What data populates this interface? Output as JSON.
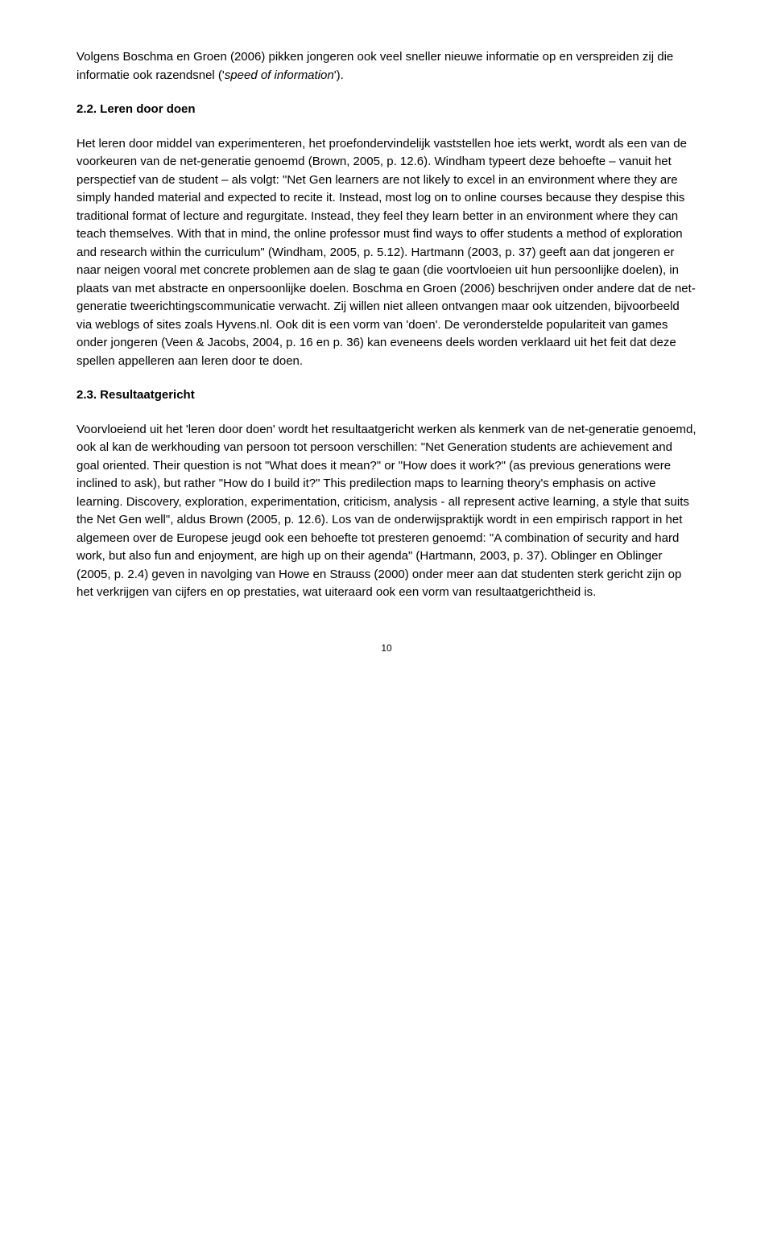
{
  "para1_part1": "Volgens Boschma en Groen (2006) pikken jongeren ook veel sneller nieuwe informatie op en verspreiden zij die informatie ook razendsnel ('",
  "para1_italic": "speed of information",
  "para1_part2": "').",
  "heading1": "2.2. Leren door doen",
  "para2": "Het leren door middel van experimenteren, het proefondervindelijk vaststellen hoe iets werkt, wordt als een van de voorkeuren van de net-generatie genoemd (Brown, 2005, p. 12.6). Windham typeert deze behoefte – vanuit het perspectief van de student – als volgt: \"Net Gen learners are not likely to excel in an environment where they are simply handed material and expected to recite it. Instead, most log on to online courses because they despise this traditional format of lecture and regurgitate. Instead, they feel they learn better in an environment where they can teach themselves. With that in mind, the online professor must find ways to offer students a method of exploration and research within the curriculum\" (Windham, 2005, p. 5.12). Hartmann (2003, p. 37) geeft aan dat jongeren er naar neigen vooral met concrete problemen aan de slag te gaan (die voortvloeien uit hun persoonlijke doelen), in plaats van met abstracte en onpersoonlijke doelen. Boschma en Groen (2006) beschrijven onder andere dat de net-generatie tweerichtingscommunicatie verwacht. Zij willen niet alleen ontvangen maar ook uitzenden, bijvoorbeeld via weblogs of sites zoals Hyvens.nl. Ook dit is een vorm van 'doen'. De veronderstelde populariteit van games onder jongeren (Veen & Jacobs, 2004, p. 16 en p. 36) kan eveneens deels worden verklaard uit het feit dat deze spellen appelleren aan leren door te doen.",
  "heading2": "2.3. Resultaatgericht",
  "para3": "Voorvloeiend uit het 'leren door doen' wordt het resultaatgericht werken als kenmerk van de net-generatie genoemd, ook al kan de werkhouding van persoon tot persoon verschillen: \"Net Generation students are achievement and goal oriented. Their question is not \"What does it mean?\" or \"How does it work?\" (as previous generations were inclined to ask), but rather \"How do I build it?\" This predilection maps to learning theory's emphasis on active learning. Discovery, exploration, experimentation, criticism, analysis - all represent active learning, a style that suits the Net Gen well\", aldus Brown (2005, p. 12.6). Los van de onderwijspraktijk wordt in een empirisch rapport in het algemeen over de Europese jeugd ook een behoefte tot presteren genoemd: \"A combination of security and hard work, but also fun and enjoyment, are high up on their agenda\" (Hartmann, 2003, p. 37). Oblinger en Oblinger (2005, p. 2.4) geven in navolging van Howe en Strauss (2000) onder meer aan dat studenten sterk gericht zijn op het verkrijgen van cijfers en op prestaties, wat uiteraard ook een vorm van resultaatgerichtheid is.",
  "pageNumber": "10"
}
